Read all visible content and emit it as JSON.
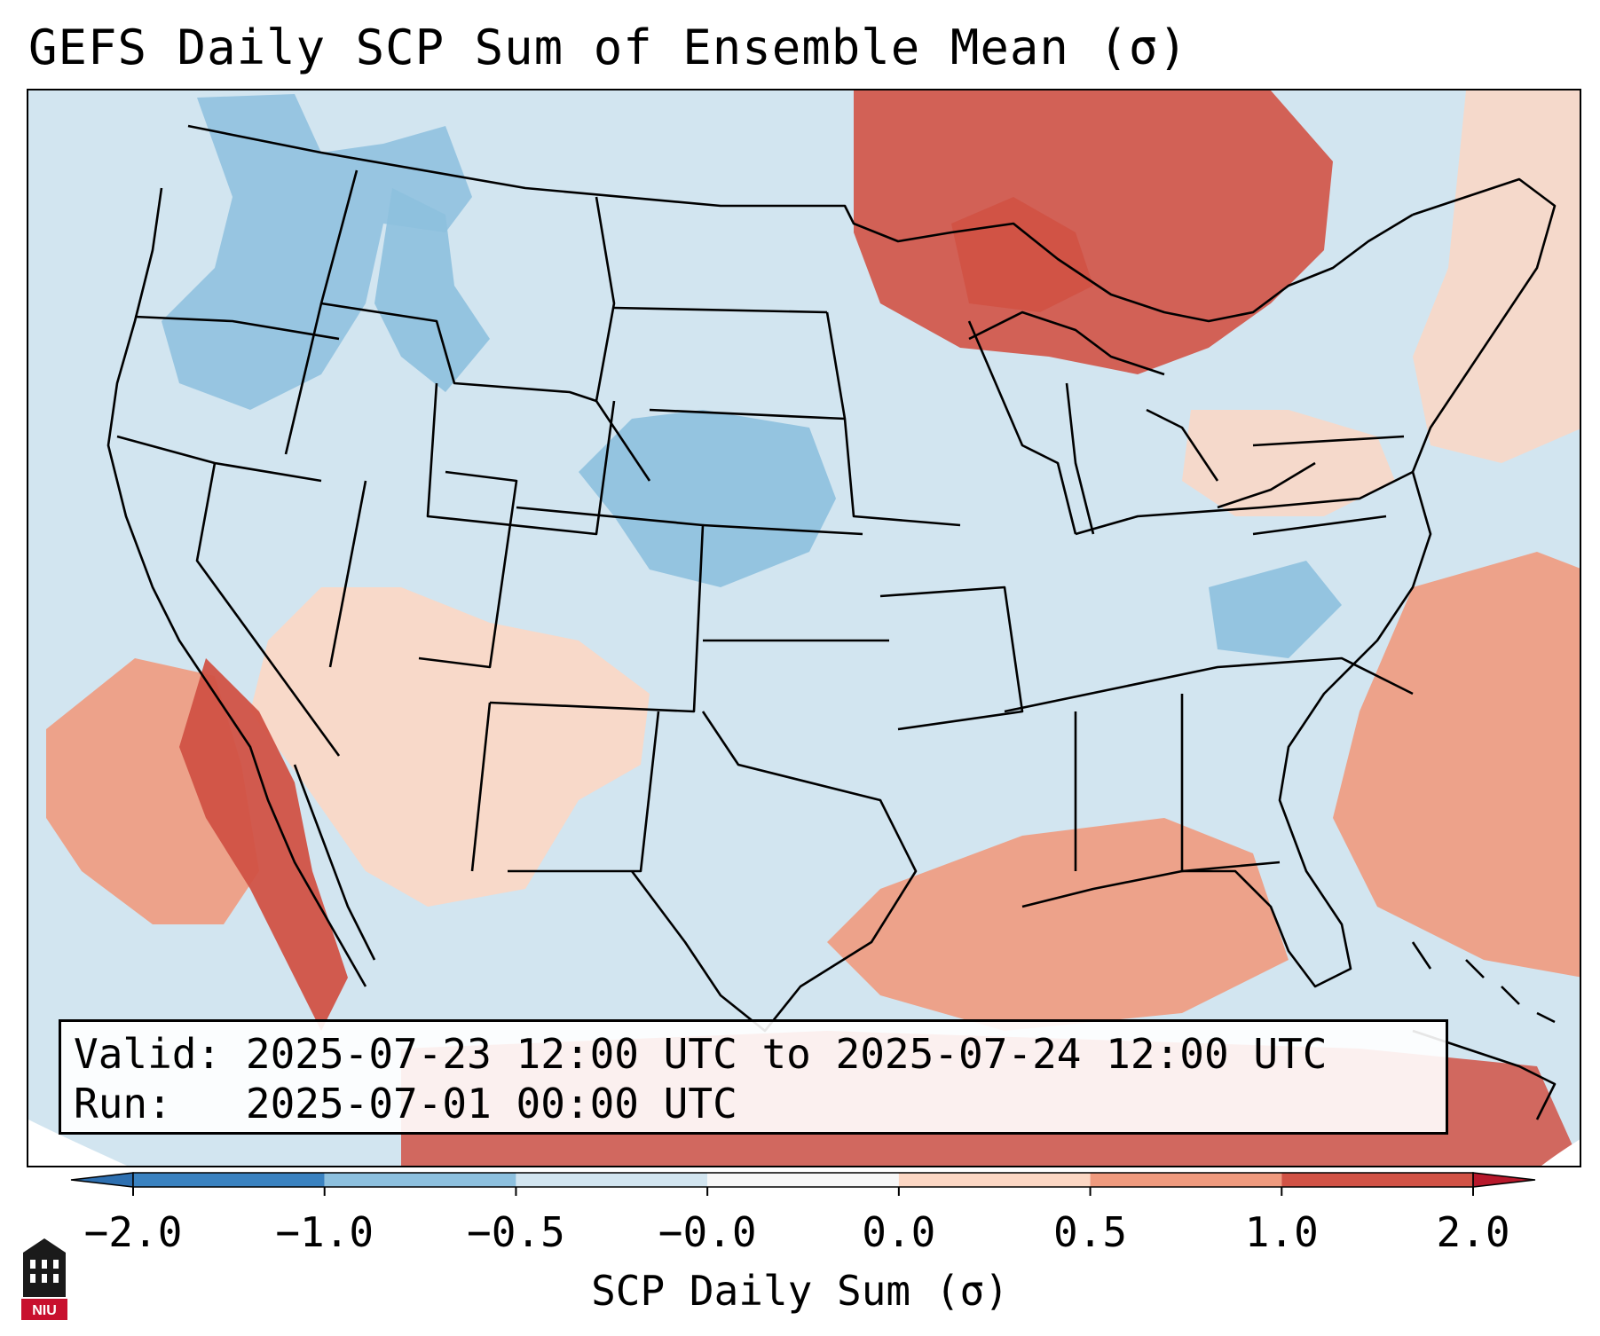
{
  "title": "GEFS Daily SCP Sum of Ensemble Mean (σ)",
  "info": {
    "valid_label": "Valid:",
    "valid_value": "2025-07-23 12:00 UTC to 2025-07-24 12:00 UTC",
    "run_label": "Run:",
    "run_value": "2025-07-01 00:00 UTC"
  },
  "colorbar": {
    "label": "SCP Daily Sum (σ)",
    "ticks": [
      "−2.0",
      "−1.0",
      "−0.5",
      "−0.0",
      "0.0",
      "0.5",
      "1.0",
      "2.0"
    ],
    "colors": [
      "#3a82c0",
      "#8dc0de",
      "#d2e5f0",
      "#f7f7f7",
      "#fcd7c4",
      "#ef9a7e",
      "#d15245"
    ],
    "under_color": "#2d6fb0",
    "over_color": "#b7182b"
  },
  "map": {
    "background_color": "#d2e5f0",
    "region": "Contiguous United States",
    "regions": [
      {
        "name": "pacific-northwest",
        "value": -0.6
      },
      {
        "name": "northern-rockies",
        "value": -0.7
      },
      {
        "name": "central-plains-nebraska",
        "value": -0.8
      },
      {
        "name": "upper-midwest-canada",
        "value": 1.2
      },
      {
        "name": "lake-superior",
        "value": 1.3
      },
      {
        "name": "southwest-desert",
        "value": 0.3
      },
      {
        "name": "southern-california-baja",
        "value": 1.4
      },
      {
        "name": "pacific-offshore",
        "value": 0.6
      },
      {
        "name": "gulf-of-mexico",
        "value": 0.9
      },
      {
        "name": "western-atlantic",
        "value": 0.8
      },
      {
        "name": "mid-atlantic-pennsylvania",
        "value": 0.3
      },
      {
        "name": "new-england",
        "value": 0.3
      },
      {
        "name": "caribbean",
        "value": 1.1
      },
      {
        "name": "north-carolina",
        "value": -0.6
      }
    ]
  },
  "logo": {
    "text": "NIU",
    "color": "#c8102e"
  }
}
